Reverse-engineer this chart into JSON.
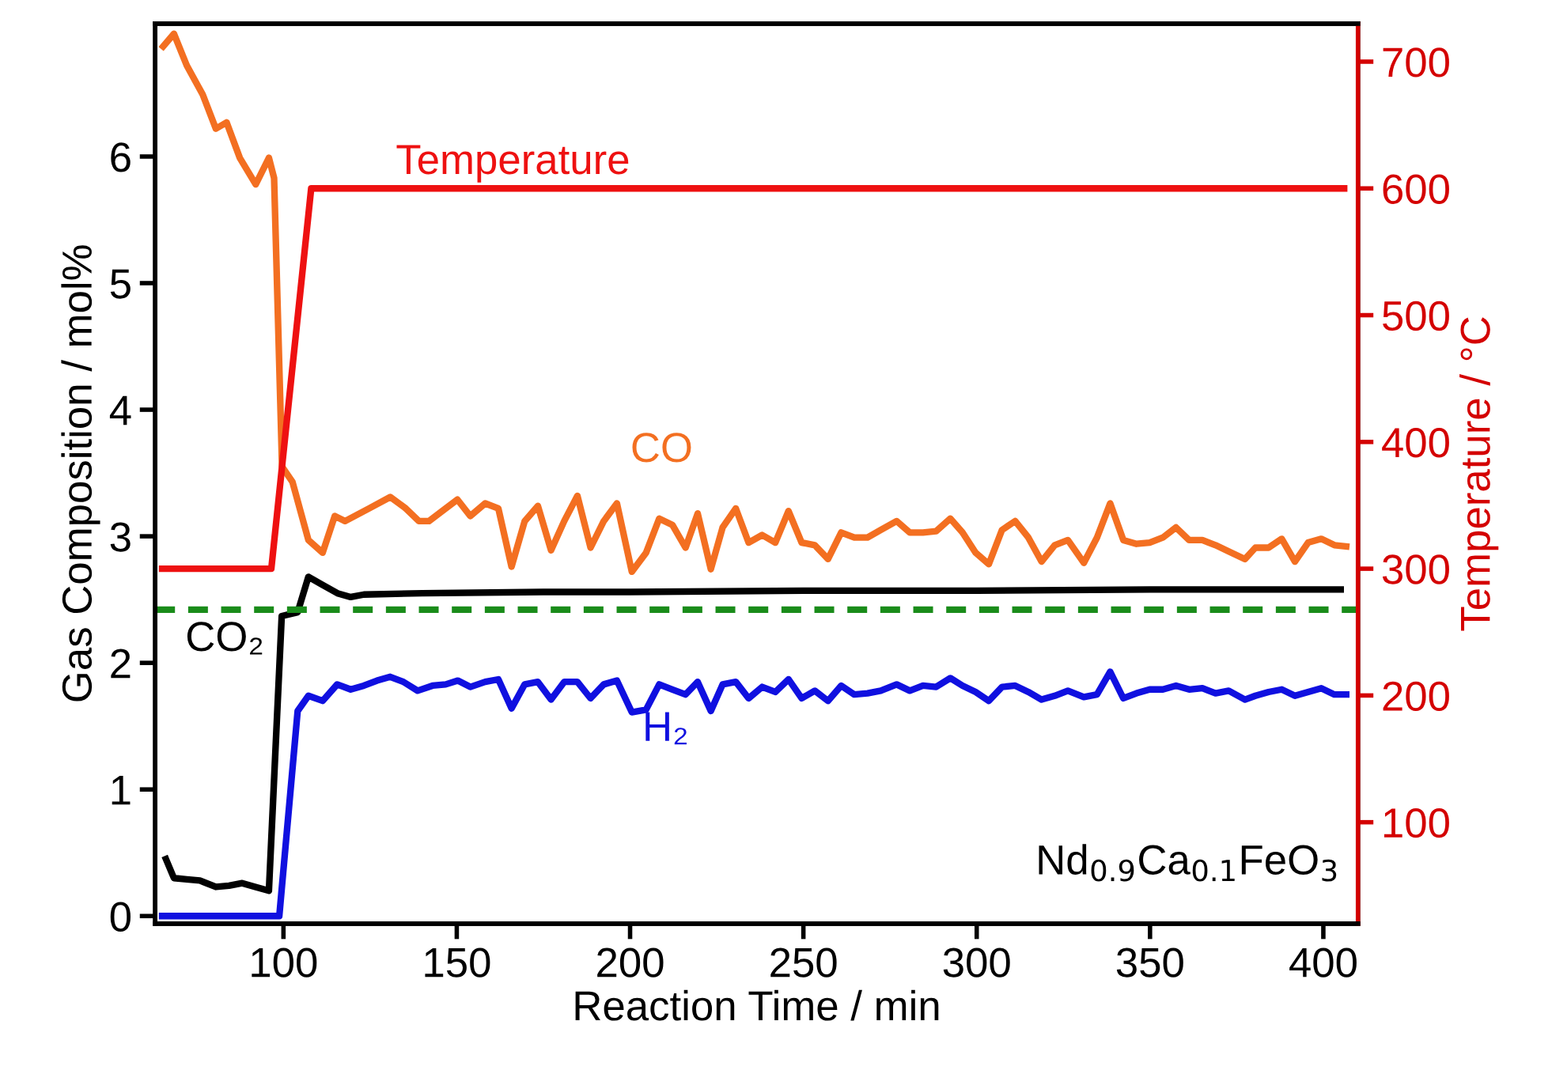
{
  "chart_data": {
    "type": "line",
    "xlabel": "Reaction Time / min",
    "ylabel": "Gas Composition / mol%",
    "y2label": "Temperature / °C",
    "xlim": [
      63,
      410
    ],
    "xticks": [
      100,
      150,
      200,
      250,
      300,
      350,
      400
    ],
    "ylim": [
      -0.06,
      7.05
    ],
    "yticks": [
      0,
      1,
      2,
      3,
      4,
      5,
      6
    ],
    "y2lim": [
      20,
      730
    ],
    "y2ticks": [
      100,
      200,
      300,
      400,
      500,
      600,
      700
    ],
    "grid": false,
    "legend": false,
    "marker": "none",
    "line_style": "solid",
    "series": [
      {
        "name": "Temperature",
        "color": "#ee1111",
        "axis": "y2",
        "x": [
          65,
          96.5,
          108,
          406
        ],
        "values": [
          300,
          300,
          600,
          600
        ]
      },
      {
        "name": "CO",
        "color": "#f36f21",
        "x": [
          65.3,
          68.4,
          72.1,
          76.7,
          80.5,
          83.6,
          87.4,
          92,
          95.8,
          97.3,
          99.6,
          102.6,
          107.2,
          111.3,
          114.8,
          117.8,
          124.7,
          130.8,
          135.3,
          139.1,
          142,
          146.8,
          150.2,
          153.9,
          158.2,
          162,
          165.8,
          169.6,
          173.4,
          177.2,
          181,
          184.8,
          188.6,
          192.4,
          196.2,
          200.5,
          204.6,
          208.4,
          212.2,
          216,
          219.5,
          223.3,
          226.7,
          230.5,
          234.2,
          238.1,
          241.9,
          245.7,
          249.5,
          253.3,
          257.1,
          260.9,
          264.7,
          268.5,
          272.3,
          276.9,
          280.7,
          284.5,
          288.3,
          292.4,
          295.9,
          299.7,
          303.5,
          307.3,
          311.1,
          314.9,
          318.7,
          322.5,
          326.3,
          330.9,
          334.7,
          338.5,
          342.3,
          346.1,
          349.9,
          353.7,
          357.5,
          361.3,
          365.1,
          368.9,
          372.7,
          377.4,
          380.4,
          384.2,
          388,
          391.8,
          395.6,
          399.4,
          403.2,
          406.6
        ],
        "values": [
          6.87,
          6.97,
          6.72,
          6.49,
          6.22,
          6.27,
          5.99,
          5.78,
          5.99,
          5.83,
          3.55,
          3.43,
          2.97,
          2.87,
          3.16,
          3.12,
          3.22,
          3.31,
          3.22,
          3.12,
          3.12,
          3.22,
          3.29,
          3.16,
          3.26,
          3.22,
          2.76,
          3.12,
          3.24,
          2.89,
          3.12,
          3.32,
          2.91,
          3.12,
          3.26,
          2.72,
          2.87,
          3.14,
          3.09,
          2.91,
          3.18,
          2.74,
          3.07,
          3.22,
          2.95,
          3.01,
          2.95,
          3.2,
          2.95,
          2.93,
          2.82,
          3.03,
          2.99,
          2.99,
          3.05,
          3.12,
          3.03,
          3.03,
          3.04,
          3.14,
          3.03,
          2.87,
          2.78,
          3.05,
          3.12,
          2.99,
          2.8,
          2.93,
          2.97,
          2.79,
          2.99,
          3.26,
          2.97,
          2.94,
          2.95,
          2.99,
          3.07,
          2.97,
          2.97,
          2.93,
          2.88,
          2.82,
          2.91,
          2.91,
          2.98,
          2.8,
          2.95,
          2.98,
          2.93,
          2.92
        ]
      },
      {
        "name": "CO₂",
        "color": "#000000",
        "x": [
          66.1,
          68.4,
          72.1,
          75.9,
          80.5,
          84.3,
          88.1,
          91.9,
          95.8,
          99.5,
          104.1,
          107.2,
          111,
          115.6,
          119.4,
          123.2,
          140,
          175,
          200,
          250,
          300,
          350,
          405
        ],
        "values": [
          0.45,
          0.3,
          0.29,
          0.28,
          0.23,
          0.24,
          0.26,
          0.23,
          0.2,
          2.37,
          2.4,
          2.68,
          2.62,
          2.55,
          2.52,
          2.54,
          2.55,
          2.56,
          2.56,
          2.57,
          2.57,
          2.58,
          2.58
        ]
      },
      {
        "name": "H₂",
        "color": "#1010e0",
        "x": [
          65,
          98.8,
          104.1,
          107.2,
          111.3,
          115.5,
          119.4,
          123.2,
          127,
          130.8,
          134.6,
          138.7,
          143,
          146.8,
          150.3,
          153.9,
          158.2,
          162,
          165.8,
          169.6,
          173.4,
          177.2,
          181,
          184.8,
          188.6,
          192.4,
          196.2,
          200.5,
          204.6,
          208.4,
          212.2,
          216,
          219.5,
          223.3,
          226.7,
          230.5,
          234.2,
          238.1,
          241.9,
          245.7,
          249.5,
          253.3,
          257.1,
          260.9,
          264.7,
          268.5,
          272.3,
          276.9,
          280.7,
          284.5,
          288.3,
          292.4,
          295.9,
          299.7,
          303.5,
          307.3,
          311.1,
          314.9,
          318.7,
          322.5,
          326.3,
          330.9,
          334.7,
          338.5,
          342.3,
          346.1,
          349.9,
          353.7,
          357.5,
          361.3,
          365.1,
          368.9,
          372.7,
          377.4,
          380.4,
          384.2,
          388,
          391.8,
          395.6,
          399.4,
          403.2,
          406.6
        ],
        "values": [
          0,
          0,
          1.62,
          1.74,
          1.7,
          1.83,
          1.79,
          1.82,
          1.86,
          1.89,
          1.85,
          1.78,
          1.82,
          1.83,
          1.86,
          1.81,
          1.85,
          1.87,
          1.64,
          1.83,
          1.85,
          1.71,
          1.85,
          1.85,
          1.72,
          1.83,
          1.86,
          1.61,
          1.63,
          1.83,
          1.79,
          1.75,
          1.85,
          1.62,
          1.83,
          1.85,
          1.72,
          1.81,
          1.77,
          1.87,
          1.72,
          1.78,
          1.7,
          1.82,
          1.75,
          1.76,
          1.78,
          1.83,
          1.78,
          1.82,
          1.81,
          1.88,
          1.82,
          1.77,
          1.7,
          1.81,
          1.82,
          1.77,
          1.71,
          1.74,
          1.78,
          1.73,
          1.75,
          1.93,
          1.72,
          1.76,
          1.79,
          1.79,
          1.82,
          1.79,
          1.8,
          1.76,
          1.78,
          1.71,
          1.74,
          1.77,
          1.79,
          1.74,
          1.77,
          1.8,
          1.75,
          1.75
        ]
      }
    ],
    "ref_lines": [
      {
        "axis": "y",
        "value": 2.42,
        "color": "#1a8c1a",
        "line_style": "dashed"
      }
    ],
    "annotations": [
      "Nd$_{0.9}$Ca$_{0.1}$FeO$_{3}$"
    ]
  }
}
